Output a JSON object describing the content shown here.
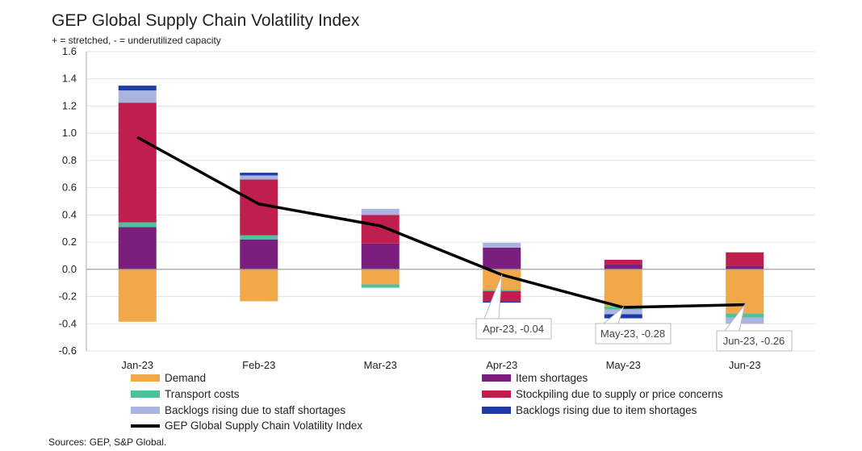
{
  "title": "GEP Global Supply Chain Volatility Index",
  "subtitle": "+ = stretched, - = underutilized capacity",
  "source": "Sources: GEP, S&P Global.",
  "chart_data": {
    "type": "bar",
    "stacked": true,
    "categories": [
      "Jan-23",
      "Feb-23",
      "Mar-23",
      "Apr-23",
      "May-23",
      "Jun-23"
    ],
    "ylim": [
      -0.6,
      1.6
    ],
    "yticks": [
      "1.6",
      "1.4",
      "1.2",
      "1.0",
      "0.8",
      "0.6",
      "0.4",
      "0.2",
      "0.0",
      "-0.2",
      "-0.4",
      "-0.6"
    ],
    "grid": true,
    "legend_position": "bottom",
    "series": [
      {
        "name": "Demand",
        "color": "#F0A848",
        "values": [
          -0.385,
          -0.235,
          -0.11,
          -0.15,
          -0.275,
          -0.325
        ]
      },
      {
        "name": "Item shortages",
        "color": "#7B1F7E",
        "values": [
          0.31,
          0.22,
          0.19,
          0.16,
          0.035,
          0.025
        ]
      },
      {
        "name": "Transport costs",
        "color": "#4FBF9C",
        "values": [
          0.035,
          0.03,
          -0.025,
          -0.01,
          -0.02,
          -0.03
        ]
      },
      {
        "name": "Stockpiling due to supply or price concerns",
        "color": "#C01E4F",
        "values": [
          0.88,
          0.41,
          0.21,
          -0.075,
          0.035,
          0.1
        ]
      },
      {
        "name": "Backlogs rising due to staff shortages",
        "color": "#A9B5E0",
        "values": [
          0.09,
          0.03,
          0.045,
          0.035,
          -0.035,
          -0.045
        ]
      },
      {
        "name": "Backlogs rising due to item shortages",
        "color": "#1F3BA8",
        "values": [
          0.035,
          0.02,
          0,
          -0.01,
          -0.03,
          0
        ]
      }
    ],
    "line": {
      "name": "GEP Global Supply Chain Volatility Index",
      "color": "#000000",
      "values": [
        0.97,
        0.48,
        0.32,
        -0.04,
        -0.28,
        -0.26
      ]
    },
    "annotations": [
      "Apr-23, -0.04",
      "May-23, -0.28",
      "Jun-23, -0.26"
    ]
  }
}
